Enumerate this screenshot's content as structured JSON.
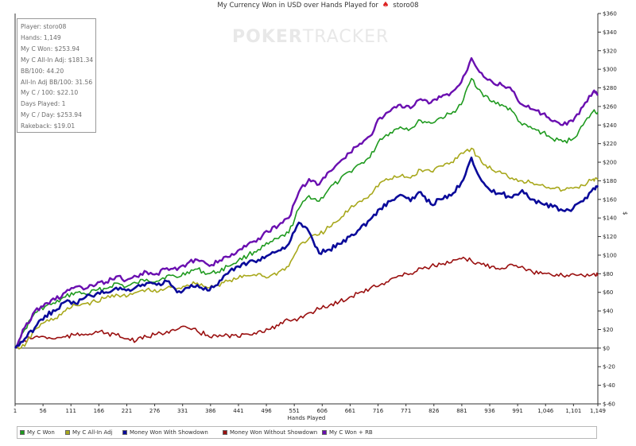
{
  "header": {
    "title": "My Currency Won in USD over Hands Played for",
    "player_name": "storo08"
  },
  "watermark": {
    "text_bold": "POKER",
    "text_light": "TRACKER"
  },
  "stats": [
    "Player: storo08",
    "Hands: 1,149",
    "My C Won: $253.94",
    "My C All-In Adj: $181.34",
    "BB/100: 44.20",
    "All-In Adj BB/100: 31.56",
    "My C / 100: $22.10",
    "Days Played: 1",
    "My C / Day: $253.94",
    "Rakeback: $19.01"
  ],
  "chart_data": {
    "type": "line",
    "title": "My Currency Won in USD over Hands Played for storo08",
    "xlabel": "Hands Played",
    "ylabel": "$",
    "xlim": [
      1,
      1149
    ],
    "ylim": [
      -60,
      360
    ],
    "x_ticks": [
      1,
      56,
      111,
      166,
      221,
      276,
      331,
      386,
      441,
      496,
      551,
      606,
      661,
      716,
      771,
      826,
      881,
      936,
      991,
      1046,
      1101,
      1149
    ],
    "x_tick_labels": [
      "1",
      "56",
      "111",
      "166",
      "221",
      "276",
      "331",
      "386",
      "441",
      "496",
      "551",
      "606",
      "661",
      "716",
      "771",
      "826",
      "881",
      "936",
      "991",
      "1,046",
      "1,101",
      "1,149"
    ],
    "y_ticks": [
      -60,
      -40,
      -20,
      0,
      20,
      40,
      60,
      80,
      100,
      120,
      140,
      160,
      180,
      200,
      220,
      240,
      260,
      280,
      300,
      320,
      340,
      360
    ],
    "y_tick_labels": [
      "$-60",
      "$-40",
      "$-20",
      "$0",
      "$20",
      "$40",
      "$60",
      "$80",
      "$100",
      "$120",
      "$140",
      "$160",
      "$180",
      "$200",
      "$220",
      "$240",
      "$260",
      "$280",
      "$300",
      "$320",
      "$340",
      "$360"
    ],
    "grid": false,
    "legend_position": "bottom",
    "series": [
      {
        "name": "My C Won",
        "color": "#1f9a1f",
        "x": [
          1,
          20,
          40,
          60,
          80,
          100,
          120,
          140,
          160,
          180,
          200,
          220,
          240,
          260,
          280,
          300,
          320,
          340,
          360,
          380,
          400,
          420,
          440,
          460,
          480,
          500,
          520,
          540,
          560,
          580,
          600,
          620,
          640,
          660,
          680,
          700,
          720,
          740,
          760,
          780,
          800,
          820,
          840,
          860,
          880,
          900,
          920,
          940,
          960,
          980,
          1000,
          1020,
          1040,
          1060,
          1080,
          1100,
          1120,
          1140,
          1149
        ],
        "y": [
          0,
          20,
          38,
          45,
          48,
          55,
          60,
          58,
          62,
          64,
          70,
          66,
          70,
          74,
          72,
          78,
          76,
          82,
          85,
          80,
          82,
          88,
          94,
          100,
          106,
          112,
          118,
          124,
          150,
          164,
          158,
          172,
          180,
          190,
          198,
          205,
          225,
          232,
          238,
          236,
          245,
          242,
          248,
          252,
          262,
          290,
          275,
          265,
          262,
          255,
          240,
          236,
          232,
          225,
          222,
          225,
          240,
          255,
          254
        ]
      },
      {
        "name": "My C All-In Adj",
        "color": "#a8a81c",
        "x": [
          1,
          20,
          40,
          60,
          80,
          100,
          120,
          140,
          160,
          180,
          200,
          220,
          240,
          260,
          280,
          300,
          320,
          340,
          360,
          380,
          400,
          420,
          440,
          460,
          480,
          500,
          520,
          540,
          560,
          580,
          600,
          620,
          640,
          660,
          680,
          700,
          720,
          740,
          760,
          780,
          800,
          820,
          840,
          860,
          880,
          900,
          920,
          940,
          960,
          980,
          1000,
          1020,
          1040,
          1060,
          1080,
          1100,
          1120,
          1140,
          1149
        ],
        "y": [
          0,
          2,
          20,
          28,
          32,
          40,
          46,
          48,
          50,
          54,
          58,
          55,
          60,
          63,
          60,
          65,
          64,
          68,
          70,
          65,
          68,
          72,
          75,
          78,
          80,
          76,
          82,
          88,
          110,
          118,
          122,
          130,
          138,
          150,
          158,
          165,
          178,
          182,
          185,
          183,
          192,
          190,
          196,
          200,
          210,
          215,
          200,
          192,
          188,
          183,
          180,
          178,
          176,
          172,
          170,
          172,
          175,
          182,
          181
        ]
      },
      {
        "name": "Money Won With Showdown",
        "color": "#0a0a9a",
        "x": [
          1,
          20,
          40,
          60,
          80,
          100,
          120,
          140,
          160,
          180,
          200,
          220,
          240,
          260,
          280,
          300,
          320,
          340,
          360,
          380,
          400,
          420,
          440,
          460,
          480,
          500,
          520,
          540,
          560,
          580,
          600,
          620,
          640,
          660,
          680,
          700,
          720,
          740,
          760,
          780,
          800,
          820,
          840,
          860,
          880,
          900,
          920,
          940,
          960,
          980,
          1000,
          1020,
          1040,
          1060,
          1080,
          1100,
          1120,
          1140,
          1149
        ],
        "y": [
          0,
          10,
          22,
          35,
          40,
          50,
          48,
          55,
          58,
          60,
          65,
          62,
          66,
          70,
          68,
          72,
          60,
          65,
          68,
          62,
          68,
          80,
          88,
          92,
          95,
          100,
          105,
          112,
          135,
          125,
          102,
          106,
          112,
          120,
          128,
          138,
          150,
          158,
          165,
          158,
          168,
          155,
          160,
          164,
          178,
          205,
          180,
          168,
          166,
          162,
          170,
          160,
          155,
          152,
          148,
          150,
          158,
          172,
          175
        ]
      },
      {
        "name": "Money Won Without Showdown",
        "color": "#9a1010",
        "x": [
          1,
          20,
          40,
          60,
          80,
          100,
          120,
          140,
          160,
          180,
          200,
          220,
          240,
          260,
          280,
          300,
          320,
          340,
          360,
          380,
          400,
          420,
          440,
          460,
          480,
          500,
          520,
          540,
          560,
          580,
          600,
          620,
          640,
          660,
          680,
          700,
          720,
          740,
          760,
          780,
          800,
          820,
          840,
          860,
          880,
          900,
          920,
          940,
          960,
          980,
          1000,
          1020,
          1040,
          1060,
          1080,
          1100,
          1120,
          1140,
          1149
        ],
        "y": [
          0,
          8,
          12,
          12,
          10,
          12,
          14,
          15,
          18,
          16,
          14,
          10,
          8,
          12,
          15,
          18,
          20,
          22,
          18,
          14,
          12,
          14,
          12,
          15,
          18,
          20,
          24,
          30,
          32,
          38,
          42,
          46,
          50,
          55,
          60,
          64,
          68,
          74,
          78,
          80,
          86,
          88,
          90,
          92,
          96,
          94,
          90,
          88,
          86,
          90,
          88,
          82,
          80,
          78,
          78,
          80,
          78,
          80,
          78
        ]
      },
      {
        "name": "My C Won + RB",
        "color": "#6a0fb0",
        "x": [
          1,
          20,
          40,
          60,
          80,
          100,
          120,
          140,
          160,
          180,
          200,
          220,
          240,
          260,
          280,
          300,
          320,
          340,
          360,
          380,
          400,
          420,
          440,
          460,
          480,
          500,
          520,
          540,
          560,
          580,
          600,
          620,
          640,
          660,
          680,
          700,
          720,
          740,
          760,
          780,
          800,
          820,
          840,
          860,
          880,
          900,
          920,
          940,
          960,
          980,
          1000,
          1020,
          1040,
          1060,
          1080,
          1100,
          1120,
          1140,
          1149
        ],
        "y": [
          0,
          22,
          40,
          48,
          52,
          60,
          66,
          64,
          68,
          71,
          77,
          73,
          77,
          82,
          80,
          86,
          84,
          91,
          95,
          90,
          92,
          98,
          105,
          112,
          118,
          125,
          132,
          140,
          168,
          182,
          176,
          190,
          200,
          210,
          220,
          228,
          248,
          255,
          262,
          258,
          268,
          264,
          270,
          275,
          286,
          312,
          296,
          287,
          283,
          277,
          262,
          257,
          252,
          244,
          240,
          244,
          260,
          276,
          272
        ]
      }
    ]
  }
}
